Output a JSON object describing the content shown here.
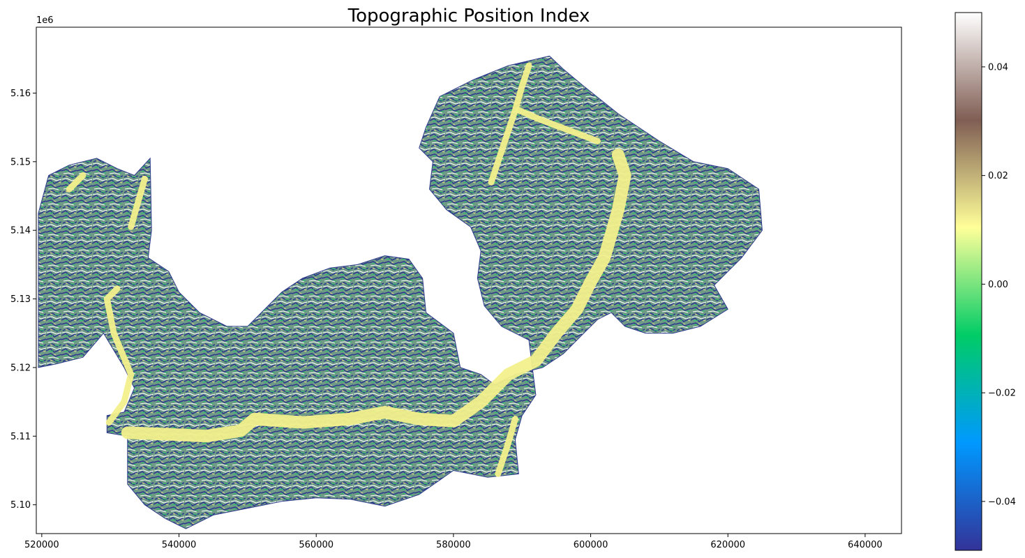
{
  "chart_data": {
    "type": "heatmap",
    "title": "Topographic Position Index",
    "xlabel": "",
    "ylabel": "",
    "x_ticks": [
      520000,
      540000,
      560000,
      580000,
      600000,
      620000,
      640000
    ],
    "x_tick_labels": [
      "520000",
      "540000",
      "560000",
      "580000",
      "600000",
      "620000",
      "640000"
    ],
    "xlim": [
      519200,
      645300
    ],
    "y_ticks": [
      5100000,
      5110000,
      5120000,
      5130000,
      5140000,
      5150000,
      5160000
    ],
    "y_tick_labels": [
      "5.10",
      "5.11",
      "5.12",
      "5.13",
      "5.14",
      "5.15",
      "5.16"
    ],
    "y_offset_label": "1e6",
    "ylim": [
      5095800,
      5169600
    ],
    "colorbar": {
      "colormap": "terrain",
      "range": [
        -0.049,
        0.05
      ],
      "ticks": [
        -0.04,
        -0.02,
        0.0,
        0.02,
        0.04
      ],
      "tick_labels": [
        "−0.04",
        "−0.02",
        "0.00",
        "0.02",
        "0.04"
      ],
      "colors": [
        "#333399",
        "#0099ff",
        "#00cc66",
        "#ffff99",
        "#805e54",
        "#ffffff"
      ]
    },
    "region_outline": [
      [
        519500,
        5142500
      ],
      [
        521000,
        5148000
      ],
      [
        524000,
        5149500
      ],
      [
        528000,
        5150500
      ],
      [
        531000,
        5149000
      ],
      [
        533500,
        5148000
      ],
      [
        535800,
        5150500
      ],
      [
        536000,
        5140000
      ],
      [
        535500,
        5136000
      ],
      [
        538500,
        5134000
      ],
      [
        540000,
        5131000
      ],
      [
        543000,
        5128000
      ],
      [
        547000,
        5126000
      ],
      [
        550000,
        5126000
      ],
      [
        555000,
        5131000
      ],
      [
        558000,
        5133000
      ],
      [
        562000,
        5134500
      ],
      [
        566000,
        5135000
      ],
      [
        570000,
        5136300
      ],
      [
        573500,
        5135800
      ],
      [
        575500,
        5133000
      ],
      [
        576000,
        5128000
      ],
      [
        580000,
        5125000
      ],
      [
        581000,
        5120000
      ],
      [
        584000,
        5119000
      ],
      [
        586000,
        5117500
      ],
      [
        589000,
        5119000
      ],
      [
        593000,
        5120000
      ],
      [
        596000,
        5122000
      ],
      [
        599000,
        5125000
      ],
      [
        601000,
        5127000
      ],
      [
        603000,
        5128000
      ],
      [
        605000,
        5126000
      ],
      [
        608000,
        5125000
      ],
      [
        612000,
        5125000
      ],
      [
        616000,
        5126000
      ],
      [
        620000,
        5128500
      ],
      [
        618000,
        5132000
      ],
      [
        622000,
        5136000
      ],
      [
        625000,
        5140000
      ],
      [
        624500,
        5146000
      ],
      [
        620000,
        5149000
      ],
      [
        615000,
        5150000
      ],
      [
        610000,
        5153000
      ],
      [
        604000,
        5157000
      ],
      [
        599000,
        5161000
      ],
      [
        596000,
        5163500
      ],
      [
        594000,
        5165400
      ],
      [
        588000,
        5164000
      ],
      [
        583000,
        5162000
      ],
      [
        578000,
        5159500
      ],
      [
        576000,
        5155000
      ],
      [
        575000,
        5152000
      ],
      [
        577000,
        5150000
      ],
      [
        576500,
        5146000
      ],
      [
        579000,
        5143000
      ],
      [
        582500,
        5140500
      ],
      [
        584000,
        5137000
      ],
      [
        583500,
        5133000
      ],
      [
        584500,
        5129000
      ],
      [
        587000,
        5126000
      ],
      [
        591000,
        5124000
      ],
      [
        592000,
        5116000
      ],
      [
        590000,
        5113000
      ],
      [
        589000,
        5109500
      ],
      [
        589500,
        5104500
      ],
      [
        585000,
        5104000
      ],
      [
        580000,
        5105000
      ],
      [
        575000,
        5101500
      ],
      [
        570000,
        5099800
      ],
      [
        565000,
        5100800
      ],
      [
        560000,
        5101000
      ],
      [
        555000,
        5100500
      ],
      [
        550000,
        5099500
      ],
      [
        545000,
        5098500
      ],
      [
        541000,
        5096500
      ],
      [
        538000,
        5098000
      ],
      [
        535000,
        5100000
      ],
      [
        532500,
        5103000
      ],
      [
        532500,
        5110000
      ],
      [
        529500,
        5110500
      ],
      [
        529500,
        5113000
      ],
      [
        532000,
        5113500
      ],
      [
        533500,
        5117000
      ],
      [
        532000,
        5120000
      ],
      [
        529000,
        5125000
      ],
      [
        526000,
        5121500
      ],
      [
        522000,
        5120500
      ],
      [
        519500,
        5120000
      ]
    ],
    "valley_paths": [
      [
        [
          529800,
          5112000
        ],
        [
          532000,
          5115000
        ],
        [
          533000,
          5119000
        ],
        [
          530500,
          5125000
        ],
        [
          529500,
          5130000
        ],
        [
          531000,
          5131500
        ]
      ],
      [
        [
          532500,
          5110500
        ],
        [
          538000,
          5110300
        ],
        [
          544000,
          5110000
        ],
        [
          549000,
          5110800
        ],
        [
          551000,
          5112500
        ],
        [
          558000,
          5112000
        ],
        [
          565000,
          5112500
        ],
        [
          570000,
          5113500
        ],
        [
          575000,
          5112500
        ],
        [
          580000,
          5112200
        ],
        [
          584000,
          5115000
        ],
        [
          588000,
          5119000
        ],
        [
          592000,
          5121000
        ],
        [
          595000,
          5125000
        ],
        [
          598000,
          5128500
        ],
        [
          600000,
          5132500
        ],
        [
          602000,
          5136000
        ],
        [
          604000,
          5143000
        ],
        [
          605000,
          5148000
        ],
        [
          604000,
          5151000
        ]
      ],
      [
        [
          586500,
          5104500
        ],
        [
          588000,
          5109000
        ],
        [
          589000,
          5112500
        ]
      ],
      [
        [
          585500,
          5147000
        ],
        [
          587500,
          5153000
        ],
        [
          589000,
          5157500
        ],
        [
          590000,
          5161000
        ],
        [
          591000,
          5164000
        ]
      ],
      [
        [
          589500,
          5157500
        ],
        [
          593000,
          5156000
        ],
        [
          597000,
          5154500
        ],
        [
          601000,
          5153000
        ]
      ],
      [
        [
          533000,
          5140500
        ],
        [
          534000,
          5144000
        ],
        [
          535000,
          5147500
        ]
      ],
      [
        [
          524000,
          5146000
        ],
        [
          526000,
          5148000
        ]
      ]
    ]
  }
}
